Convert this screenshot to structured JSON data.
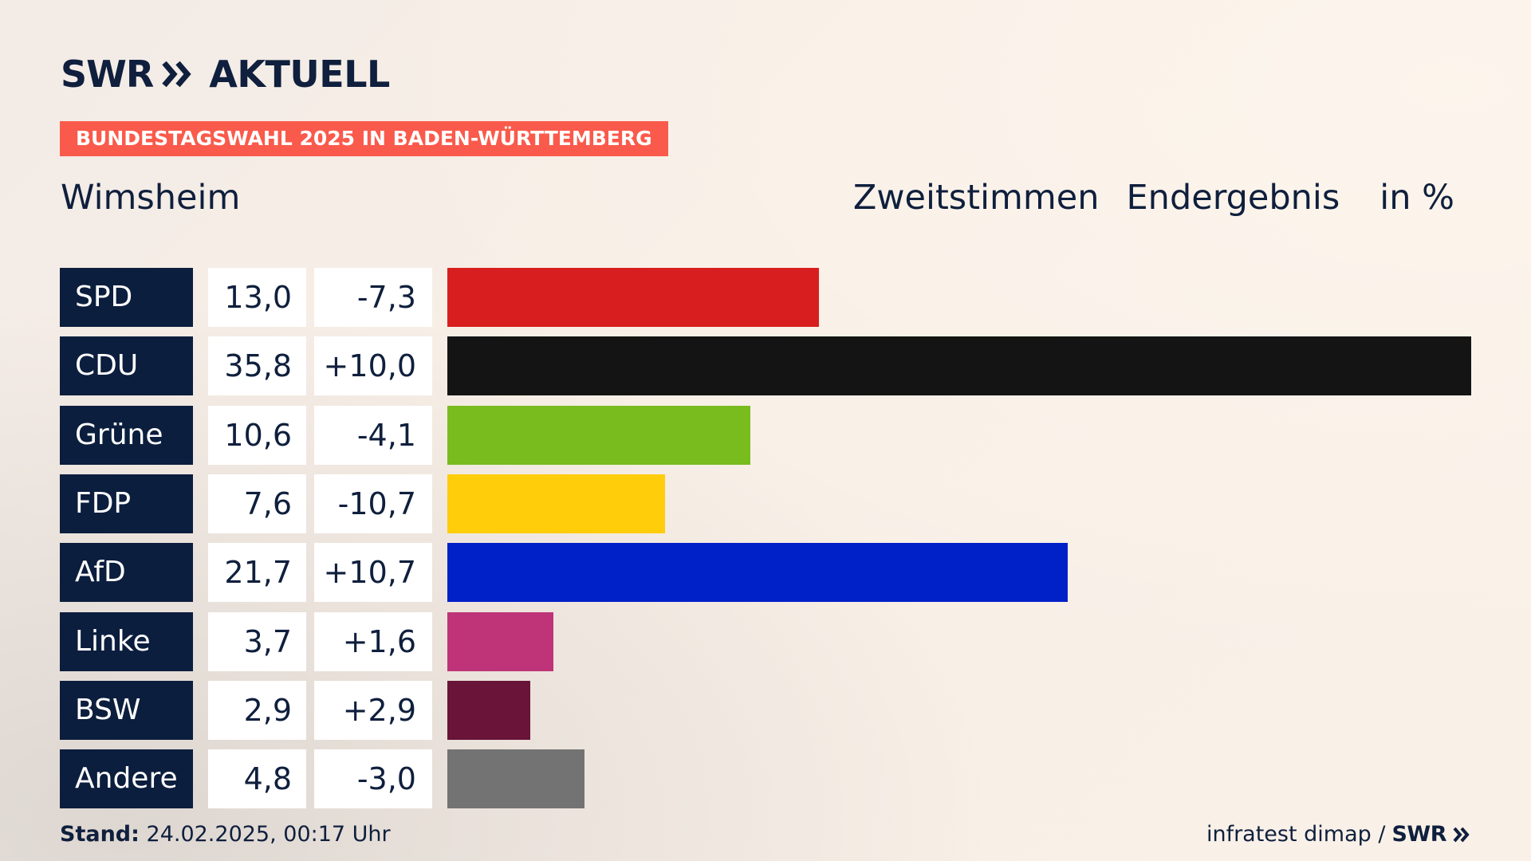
{
  "brand": {
    "logo_text": "SWR",
    "logo_suffix": "AKTUELL",
    "primary_color": "#0c1e3e",
    "accent_color": "#fa5a4b"
  },
  "banner": {
    "label": "BUNDESTAGSWAHL 2025 IN BADEN-WÜRTTEMBERG"
  },
  "header": {
    "place": "Wimsheim",
    "vote_type": "Zweitstimmen",
    "result_type": "Endergebnis",
    "unit": "in %"
  },
  "chart_data": {
    "type": "bar",
    "orientation": "horizontal",
    "title": "",
    "xlabel": "",
    "ylabel": "",
    "xlim": [
      0,
      35.8
    ],
    "grid": false,
    "categories": [
      "SPD",
      "CDU",
      "Grüne",
      "FDP",
      "AfD",
      "Linke",
      "BSW",
      "Andere"
    ],
    "series": [
      {
        "values": [
          13.0,
          35.8,
          10.6,
          7.6,
          21.7,
          3.7,
          2.9,
          4.8
        ]
      }
    ],
    "value_labels": [
      "13,0",
      "35,8",
      "10,6",
      "7,6",
      "21,7",
      "3,7",
      "2,9",
      "4,8"
    ],
    "diff_labels": [
      "-7,3",
      "+10,0",
      "-4,1",
      "-10,7",
      "+10,7",
      "+1,6",
      "+2,9",
      "-3,0"
    ],
    "colors": [
      "#d81e1e",
      "#141414",
      "#78bc1e",
      "#ffcd0a",
      "#0020c8",
      "#bf3378",
      "#691438",
      "#737373"
    ]
  },
  "footer": {
    "stand_label": "Stand:",
    "stand_value": "24.02.2025, 00:17 Uhr",
    "source": "infratest dimap /",
    "source_brand": "SWR"
  }
}
